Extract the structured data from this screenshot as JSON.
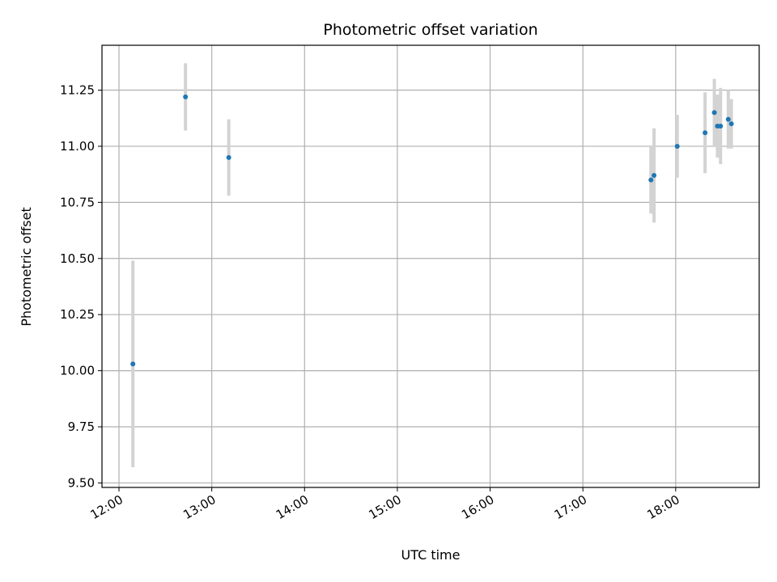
{
  "chart_data": {
    "type": "scatter",
    "title": "Photometric offset variation",
    "xlabel": "UTC time",
    "ylabel": "Photometric offset",
    "grid": true,
    "xlim": [
      "11:49",
      "18:54"
    ],
    "ylim": [
      9.48,
      11.45
    ],
    "x_ticks": [
      "12:00",
      "13:00",
      "14:00",
      "15:00",
      "16:00",
      "17:00",
      "18:00"
    ],
    "y_ticks": [
      "9.50",
      "9.75",
      "10.00",
      "10.25",
      "10.50",
      "10.75",
      "11.00",
      "11.25"
    ],
    "marker_color": "#1f77b4",
    "errorbar_color": "#d3d3d3",
    "series": [
      {
        "points": [
          {
            "x": "12:09",
            "y": 10.03,
            "yerr": 0.46
          },
          {
            "x": "12:43",
            "y": 11.22,
            "yerr": 0.15
          },
          {
            "x": "13:11",
            "y": 10.95,
            "yerr": 0.17
          },
          {
            "x": "17:44",
            "y": 10.85,
            "yerr": 0.15
          },
          {
            "x": "17:46",
            "y": 10.87,
            "yerr": 0.21
          },
          {
            "x": "18:01",
            "y": 11.0,
            "yerr": 0.14
          },
          {
            "x": "18:19",
            "y": 11.06,
            "yerr": 0.18
          },
          {
            "x": "18:25",
            "y": 11.15,
            "yerr": 0.15
          },
          {
            "x": "18:27",
            "y": 11.09,
            "yerr": 0.14
          },
          {
            "x": "18:29",
            "y": 11.09,
            "yerr": 0.17
          },
          {
            "x": "18:34",
            "y": 11.12,
            "yerr": 0.13
          },
          {
            "x": "18:36",
            "y": 11.1,
            "yerr": 0.11
          }
        ]
      }
    ]
  }
}
